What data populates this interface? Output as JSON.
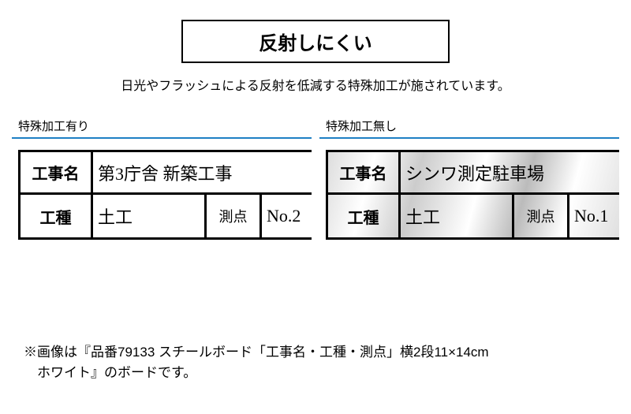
{
  "header": {
    "title": "反射しにくい",
    "subtitle": "日光やフラッシュによる反射を低減する特殊加工が施されています。"
  },
  "panels": {
    "left": {
      "label": "特殊加工有り",
      "row1_label": "工事名",
      "row1_value": "第3庁舎 新築工事",
      "row2_label": "工種",
      "row2_value": "土工",
      "row2_sublabel": "測点",
      "row2_subvalue": "No.2"
    },
    "right": {
      "label": "特殊加工無し",
      "row1_label": "工事名",
      "row1_value": "シンワ測定駐車場",
      "row2_label": "工種",
      "row2_value": "土工",
      "row2_sublabel": "測点",
      "row2_subvalue": "No.1"
    }
  },
  "footnote": {
    "line1": "※画像は『品番79133 スチールボード「工事名・工種・測点」横2段11×14cm",
    "line2": "　ホワイト』のボードです。"
  },
  "colors": {
    "accent_blue": "#1e7fc4",
    "text": "#000000",
    "background": "#ffffff"
  }
}
